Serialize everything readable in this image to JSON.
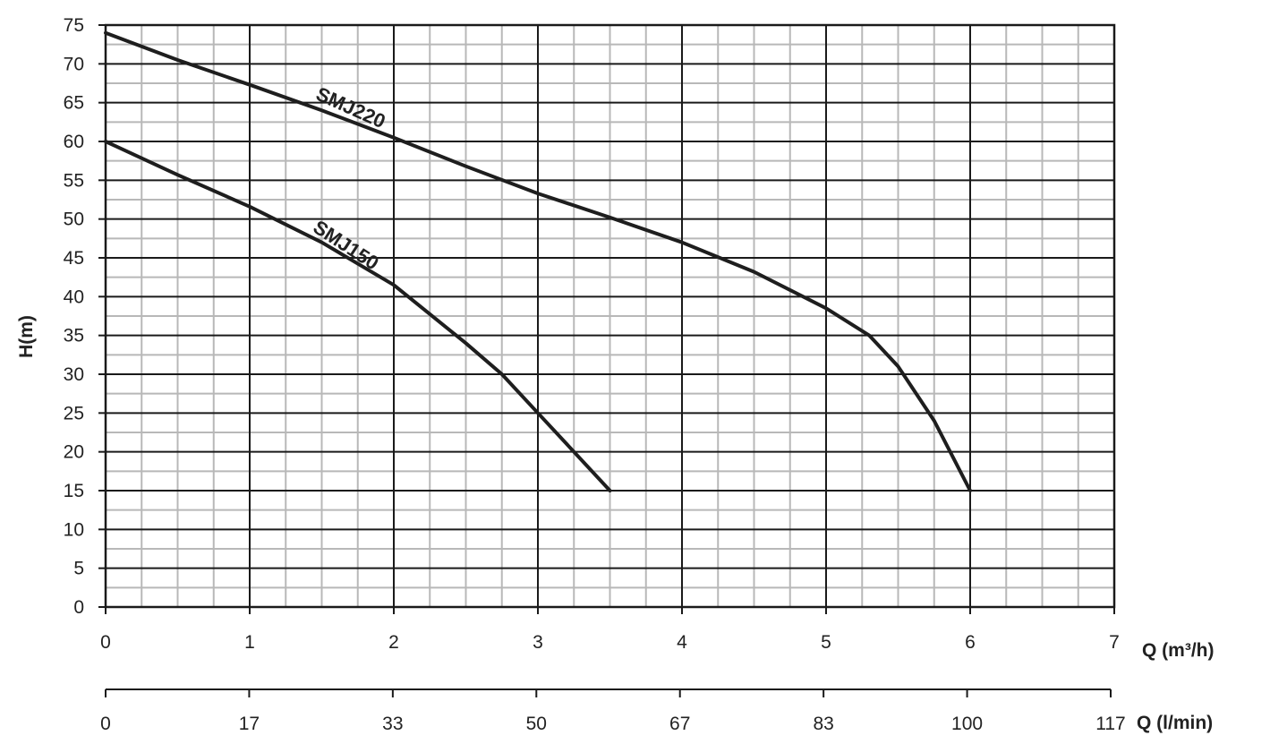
{
  "chart_data": {
    "type": "line",
    "ylabel": "H(m)",
    "xlabel": "Q (m³/h)",
    "x2label": "Q (l/min)",
    "xlim": [
      0,
      7
    ],
    "ylim": [
      0,
      75
    ],
    "xticks": [
      0,
      1,
      2,
      3,
      4,
      5,
      6,
      7
    ],
    "x2ticks": [
      0,
      17,
      33,
      50,
      67,
      83,
      100,
      117
    ],
    "yticks": [
      0,
      5,
      10,
      15,
      20,
      25,
      30,
      35,
      40,
      45,
      50,
      55,
      60,
      65,
      70,
      75
    ],
    "grid": true,
    "series": [
      {
        "name": "SMJ220",
        "label_x": 1.45,
        "label_y": 65.5,
        "label_angle": 24,
        "points": [
          [
            0,
            74
          ],
          [
            0.5,
            70.5
          ],
          [
            1,
            67.3
          ],
          [
            1.5,
            64
          ],
          [
            2,
            60.5
          ],
          [
            2.5,
            56.8
          ],
          [
            3,
            53.3
          ],
          [
            3.5,
            50.2
          ],
          [
            4,
            47
          ],
          [
            4.5,
            43.2
          ],
          [
            5,
            38.5
          ],
          [
            5.3,
            35
          ],
          [
            5.5,
            31
          ],
          [
            5.75,
            24
          ],
          [
            6,
            15
          ]
        ]
      },
      {
        "name": "SMJ150",
        "label_x": 1.43,
        "label_y": 48.5,
        "label_angle": 33,
        "points": [
          [
            0,
            60
          ],
          [
            0.5,
            55.7
          ],
          [
            1,
            51.6
          ],
          [
            1.5,
            47
          ],
          [
            2,
            41.5
          ],
          [
            2.5,
            34
          ],
          [
            2.75,
            30
          ],
          [
            3,
            25
          ],
          [
            3.25,
            20
          ],
          [
            3.5,
            15
          ]
        ]
      }
    ]
  }
}
